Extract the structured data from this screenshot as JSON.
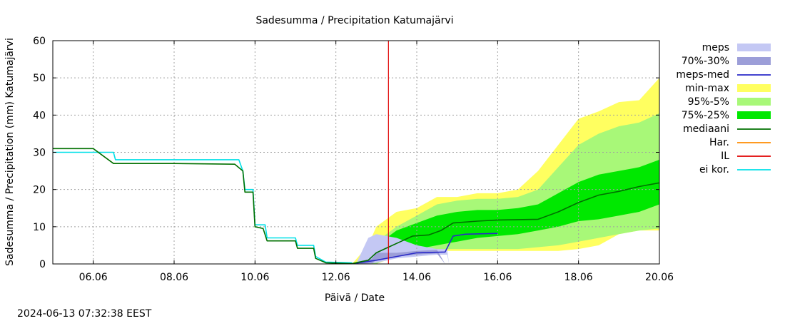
{
  "chart_data": {
    "type": "area",
    "title": "Sadesumma / Precipitation  Katumajärvi",
    "xlabel": "Päivä / Date",
    "ylabel": "Sadesumma / Precipitation (mm)  Katumajärvi",
    "x_unit": "days since 05.06 00:00",
    "xlim": [
      0,
      15
    ],
    "ylim": [
      0,
      60
    ],
    "yticks": [
      0,
      10,
      20,
      30,
      40,
      50,
      60
    ],
    "xticks": [
      {
        "day": 1,
        "label": "06.06"
      },
      {
        "day": 3,
        "label": "08.06"
      },
      {
        "day": 5,
        "label": "10.06"
      },
      {
        "day": 7,
        "label": "12.06"
      },
      {
        "day": 9,
        "label": "14.06"
      },
      {
        "day": 11,
        "label": "16.06"
      },
      {
        "day": 13,
        "label": "18.06"
      },
      {
        "day": 15,
        "label": "20.06"
      }
    ],
    "grid": true,
    "legend_position": "right",
    "current_time_day": 8.3,
    "timestamp": "2024-06-13 07:32:38 EEST",
    "colors": {
      "meps": "#c4c8f4",
      "meps_70_30": "#9c9ed8",
      "meps_med": "#2a2ac8",
      "min_max": "#ffff60",
      "p95_5": "#a8f878",
      "p75_25": "#00e800",
      "median": "#007000",
      "har": "#ff8c00",
      "il": "#e00000",
      "ei_kor": "#00e0e8"
    },
    "legend": [
      {
        "key": "meps",
        "label": "meps",
        "kind": "box"
      },
      {
        "key": "meps_70_30",
        "label": "70%-30%",
        "kind": "box"
      },
      {
        "key": "meps_med",
        "label": "meps-med",
        "kind": "line"
      },
      {
        "key": "min_max",
        "label": "min-max",
        "kind": "box"
      },
      {
        "key": "p95_5",
        "label": "95%-5%",
        "kind": "box"
      },
      {
        "key": "p75_25",
        "label": "75%-25%",
        "kind": "box"
      },
      {
        "key": "median",
        "label": "mediaani",
        "kind": "line"
      },
      {
        "key": "har",
        "label": "Har.",
        "kind": "line"
      },
      {
        "key": "il",
        "label": "IL",
        "kind": "line"
      },
      {
        "key": "ei_kor",
        "label": "ei kor.",
        "kind": "line"
      }
    ],
    "series": {
      "ei_kor": [
        [
          0,
          30
        ],
        [
          1.0,
          30
        ],
        [
          1.5,
          30
        ],
        [
          1.55,
          28
        ],
        [
          4.6,
          28
        ],
        [
          4.7,
          25
        ],
        [
          4.75,
          20
        ],
        [
          4.95,
          20
        ],
        [
          5.0,
          10.5
        ],
        [
          5.25,
          10.5
        ],
        [
          5.3,
          7
        ],
        [
          6.0,
          7
        ],
        [
          6.05,
          5
        ],
        [
          6.45,
          5
        ],
        [
          6.5,
          2
        ],
        [
          6.75,
          0.5
        ],
        [
          7.4,
          0.3
        ]
      ],
      "median": [
        [
          0,
          31
        ],
        [
          1.0,
          31
        ],
        [
          1.5,
          27
        ],
        [
          3.0,
          27
        ],
        [
          4.5,
          26.8
        ],
        [
          4.7,
          25
        ],
        [
          4.75,
          19.3
        ],
        [
          4.95,
          19.3
        ],
        [
          5.0,
          10
        ],
        [
          5.2,
          9.5
        ],
        [
          5.3,
          6.2
        ],
        [
          6.0,
          6.2
        ],
        [
          6.05,
          4.2
        ],
        [
          6.45,
          4.2
        ],
        [
          6.5,
          1.5
        ],
        [
          6.75,
          0.3
        ],
        [
          7.4,
          0.1
        ],
        [
          7.8,
          1
        ],
        [
          8.0,
          3
        ],
        [
          8.3,
          4.5
        ],
        [
          8.6,
          6
        ],
        [
          8.9,
          7.5
        ],
        [
          9.3,
          7.8
        ],
        [
          9.6,
          9
        ],
        [
          9.9,
          11
        ],
        [
          10.5,
          11.5
        ],
        [
          11.0,
          11.8
        ],
        [
          12.0,
          12
        ],
        [
          12.5,
          14
        ],
        [
          13.0,
          16.5
        ],
        [
          13.5,
          18.5
        ],
        [
          14.0,
          19.5
        ],
        [
          14.5,
          20.8
        ],
        [
          15.0,
          21.8
        ]
      ],
      "meps_med": [
        [
          7.5,
          0.2
        ],
        [
          8.0,
          1
        ],
        [
          8.5,
          2
        ],
        [
          9.0,
          3
        ],
        [
          9.7,
          3.2
        ],
        [
          9.9,
          7.5
        ],
        [
          10.2,
          8
        ],
        [
          11.0,
          8.2
        ]
      ],
      "meps_band": {
        "x": [
          7.5,
          7.8,
          8.0,
          8.5,
          9.0,
          9.5,
          9.75,
          9.8
        ],
        "lo": [
          0,
          0,
          0.3,
          1.5,
          2,
          2.5,
          2.5,
          0
        ],
        "hi": [
          0,
          7,
          8,
          7,
          5,
          4,
          4,
          0
        ]
      },
      "meps_70_30_band": {
        "x": [
          7.5,
          7.9,
          8.0,
          8.5,
          9.0,
          9.5,
          9.7
        ],
        "lo": [
          0,
          0.2,
          1,
          2,
          2.5,
          2.8,
          0
        ],
        "hi": [
          0,
          1.5,
          3,
          3,
          3.5,
          3.8,
          0
        ]
      },
      "min_max_band": {
        "x": [
          7.4,
          7.8,
          8.0,
          8.5,
          9.0,
          9.5,
          10.0,
          10.5,
          11.0,
          11.5,
          12.0,
          12.5,
          13.0,
          13.5,
          14.0,
          14.5,
          15.0
        ],
        "lo": [
          0,
          0,
          0,
          2,
          3,
          3.5,
          3.5,
          3.5,
          3.5,
          3.5,
          3.5,
          3.5,
          4,
          5,
          8,
          9,
          9
        ],
        "hi": [
          0,
          5,
          10,
          14,
          15,
          18,
          18,
          19,
          19,
          20,
          25,
          32,
          39,
          41,
          43.5,
          44,
          50
        ]
      },
      "p95_5_band": {
        "x": [
          7.4,
          7.8,
          8.0,
          8.5,
          9.0,
          9.5,
          10.0,
          10.5,
          11.0,
          11.5,
          12.0,
          12.5,
          13.0,
          13.5,
          14.0,
          14.5,
          15.0
        ],
        "lo": [
          0,
          0,
          0,
          2.5,
          3.5,
          4,
          4,
          4,
          4,
          4,
          4.5,
          5,
          6,
          7,
          8,
          9,
          9.5
        ],
        "hi": [
          0,
          2,
          6,
          10,
          13,
          16,
          17,
          17.5,
          17.5,
          18,
          20,
          26,
          32,
          35,
          37,
          38,
          40.5
        ]
      },
      "p75_25_band": {
        "x": [
          7.4,
          7.8,
          8.0,
          8.5,
          9.0,
          9.5,
          10.0,
          10.5,
          11.0,
          11.5,
          12.0,
          12.5,
          13.0,
          13.5,
          14.0,
          14.5,
          15.0
        ],
        "lo": [
          0,
          0,
          0.5,
          2.5,
          4,
          5,
          6,
          7,
          7.5,
          8,
          9,
          10,
          11.5,
          12,
          13,
          14,
          16
        ],
        "hi": [
          0,
          1.5,
          5,
          9,
          11,
          13,
          14,
          14.5,
          14.5,
          15,
          16,
          19,
          22,
          24,
          25,
          26,
          28
        ]
      }
    }
  }
}
